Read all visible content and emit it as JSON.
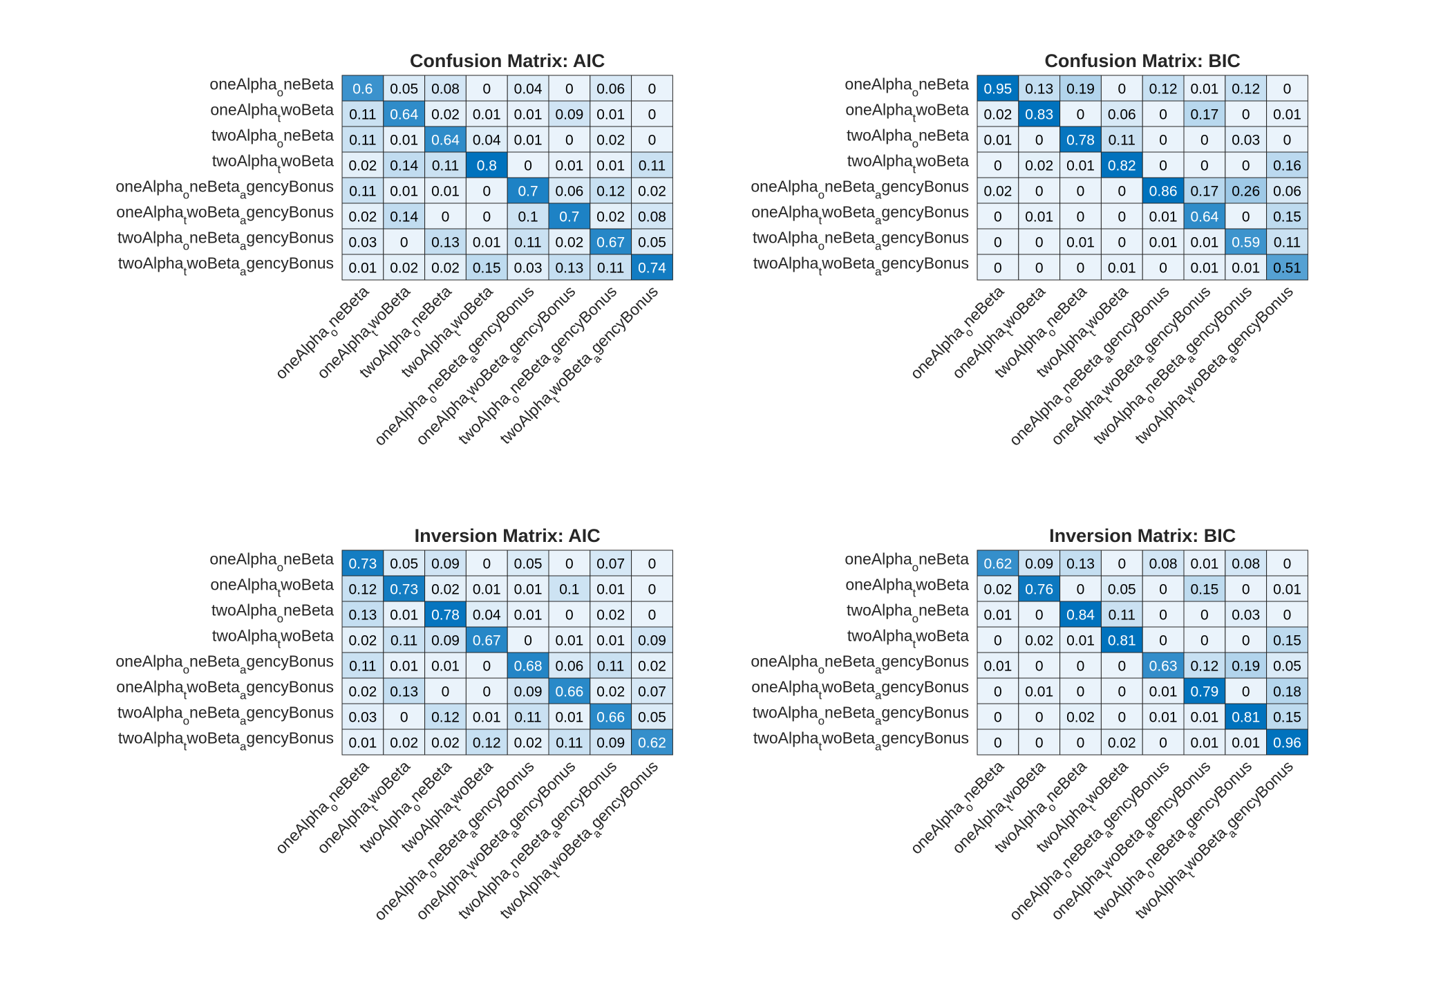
{
  "chart_data": [
    {
      "type": "heatmap",
      "title": "Confusion Matrix: AIC",
      "colormap": [
        "#eaf3fb",
        "#0072bd"
      ],
      "labels": [
        [
          "oneAlpha",
          "o",
          "neBeta"
        ],
        [
          "oneAlpha",
          "t",
          "woBeta"
        ],
        [
          "twoAlpha",
          "o",
          "neBeta"
        ],
        [
          "twoAlpha",
          "t",
          "woBeta"
        ],
        [
          "oneAlpha",
          "o",
          "neBeta",
          "a",
          "gencyBonus"
        ],
        [
          "oneAlpha",
          "t",
          "woBeta",
          "a",
          "gencyBonus"
        ],
        [
          "twoAlpha",
          "o",
          "neBeta",
          "a",
          "gencyBonus"
        ],
        [
          "twoAlpha",
          "t",
          "woBeta",
          "a",
          "gencyBonus"
        ]
      ],
      "values": [
        [
          0.6,
          0.05,
          0.08,
          0,
          0.04,
          0,
          0.06,
          0
        ],
        [
          0.11,
          0.64,
          0.02,
          0.01,
          0.01,
          0.09,
          0.01,
          0
        ],
        [
          0.11,
          0.01,
          0.64,
          0.04,
          0.01,
          0,
          0.02,
          0
        ],
        [
          0.02,
          0.14,
          0.11,
          0.8,
          0,
          0.01,
          0.01,
          0.11
        ],
        [
          0.11,
          0.01,
          0.01,
          0,
          0.7,
          0.06,
          0.12,
          0.02
        ],
        [
          0.02,
          0.14,
          0,
          0,
          0.1,
          0.7,
          0.02,
          0.08
        ],
        [
          0.03,
          0,
          0.13,
          0.01,
          0.11,
          0.02,
          0.67,
          0.05
        ],
        [
          0.01,
          0.02,
          0.02,
          0.15,
          0.03,
          0.13,
          0.11,
          0.74
        ]
      ]
    },
    {
      "type": "heatmap",
      "title": "Confusion Matrix: BIC",
      "colormap": [
        "#eaf3fb",
        "#0072bd"
      ],
      "labels": [
        [
          "oneAlpha",
          "o",
          "neBeta"
        ],
        [
          "oneAlpha",
          "t",
          "woBeta"
        ],
        [
          "twoAlpha",
          "o",
          "neBeta"
        ],
        [
          "twoAlpha",
          "t",
          "woBeta"
        ],
        [
          "oneAlpha",
          "o",
          "neBeta",
          "a",
          "gencyBonus"
        ],
        [
          "oneAlpha",
          "t",
          "woBeta",
          "a",
          "gencyBonus"
        ],
        [
          "twoAlpha",
          "o",
          "neBeta",
          "a",
          "gencyBonus"
        ],
        [
          "twoAlpha",
          "t",
          "woBeta",
          "a",
          "gencyBonus"
        ]
      ],
      "values": [
        [
          0.95,
          0.13,
          0.19,
          0,
          0.12,
          0.01,
          0.12,
          0
        ],
        [
          0.02,
          0.83,
          0,
          0.06,
          0,
          0.17,
          0,
          0.01
        ],
        [
          0.01,
          0,
          0.78,
          0.11,
          0,
          0,
          0.03,
          0
        ],
        [
          0,
          0.02,
          0.01,
          0.82,
          0,
          0,
          0,
          0.16
        ],
        [
          0.02,
          0,
          0,
          0,
          0.86,
          0.17,
          0.26,
          0.06
        ],
        [
          0,
          0.01,
          0,
          0,
          0.01,
          0.64,
          0,
          0.15
        ],
        [
          0,
          0,
          0.01,
          0,
          0.01,
          0.01,
          0.59,
          0.11
        ],
        [
          0,
          0,
          0,
          0.01,
          0,
          0.01,
          0.01,
          0.51
        ]
      ]
    },
    {
      "type": "heatmap",
      "title": "Inversion Matrix: AIC",
      "colormap": [
        "#eaf3fb",
        "#0072bd"
      ],
      "labels": [
        [
          "oneAlpha",
          "o",
          "neBeta"
        ],
        [
          "oneAlpha",
          "t",
          "woBeta"
        ],
        [
          "twoAlpha",
          "o",
          "neBeta"
        ],
        [
          "twoAlpha",
          "t",
          "woBeta"
        ],
        [
          "oneAlpha",
          "o",
          "neBeta",
          "a",
          "gencyBonus"
        ],
        [
          "oneAlpha",
          "t",
          "woBeta",
          "a",
          "gencyBonus"
        ],
        [
          "twoAlpha",
          "o",
          "neBeta",
          "a",
          "gencyBonus"
        ],
        [
          "twoAlpha",
          "t",
          "woBeta",
          "a",
          "gencyBonus"
        ]
      ],
      "values": [
        [
          0.73,
          0.05,
          0.09,
          0,
          0.05,
          0,
          0.07,
          0
        ],
        [
          0.12,
          0.73,
          0.02,
          0.01,
          0.01,
          0.1,
          0.01,
          0
        ],
        [
          0.13,
          0.01,
          0.78,
          0.04,
          0.01,
          0,
          0.02,
          0
        ],
        [
          0.02,
          0.11,
          0.09,
          0.67,
          0,
          0.01,
          0.01,
          0.09
        ],
        [
          0.11,
          0.01,
          0.01,
          0,
          0.68,
          0.06,
          0.11,
          0.02
        ],
        [
          0.02,
          0.13,
          0,
          0,
          0.09,
          0.66,
          0.02,
          0.07
        ],
        [
          0.03,
          0,
          0.12,
          0.01,
          0.11,
          0.01,
          0.66,
          0.05
        ],
        [
          0.01,
          0.02,
          0.02,
          0.12,
          0.02,
          0.11,
          0.09,
          0.62
        ]
      ]
    },
    {
      "type": "heatmap",
      "title": "Inversion Matrix: BIC",
      "colormap": [
        "#eaf3fb",
        "#0072bd"
      ],
      "labels": [
        [
          "oneAlpha",
          "o",
          "neBeta"
        ],
        [
          "oneAlpha",
          "t",
          "woBeta"
        ],
        [
          "twoAlpha",
          "o",
          "neBeta"
        ],
        [
          "twoAlpha",
          "t",
          "woBeta"
        ],
        [
          "oneAlpha",
          "o",
          "neBeta",
          "a",
          "gencyBonus"
        ],
        [
          "oneAlpha",
          "t",
          "woBeta",
          "a",
          "gencyBonus"
        ],
        [
          "twoAlpha",
          "o",
          "neBeta",
          "a",
          "gencyBonus"
        ],
        [
          "twoAlpha",
          "t",
          "woBeta",
          "a",
          "gencyBonus"
        ]
      ],
      "values": [
        [
          0.62,
          0.09,
          0.13,
          0,
          0.08,
          0.01,
          0.08,
          0
        ],
        [
          0.02,
          0.76,
          0,
          0.05,
          0,
          0.15,
          0,
          0.01
        ],
        [
          0.01,
          0,
          0.84,
          0.11,
          0,
          0,
          0.03,
          0
        ],
        [
          0,
          0.02,
          0.01,
          0.81,
          0,
          0,
          0,
          0.15
        ],
        [
          0.01,
          0,
          0,
          0,
          0.63,
          0.12,
          0.19,
          0.05
        ],
        [
          0,
          0.01,
          0,
          0,
          0.01,
          0.79,
          0,
          0.18
        ],
        [
          0,
          0,
          0.02,
          0,
          0.01,
          0.01,
          0.81,
          0.15
        ],
        [
          0,
          0,
          0,
          0.02,
          0,
          0.01,
          0.01,
          0.96
        ]
      ]
    }
  ]
}
